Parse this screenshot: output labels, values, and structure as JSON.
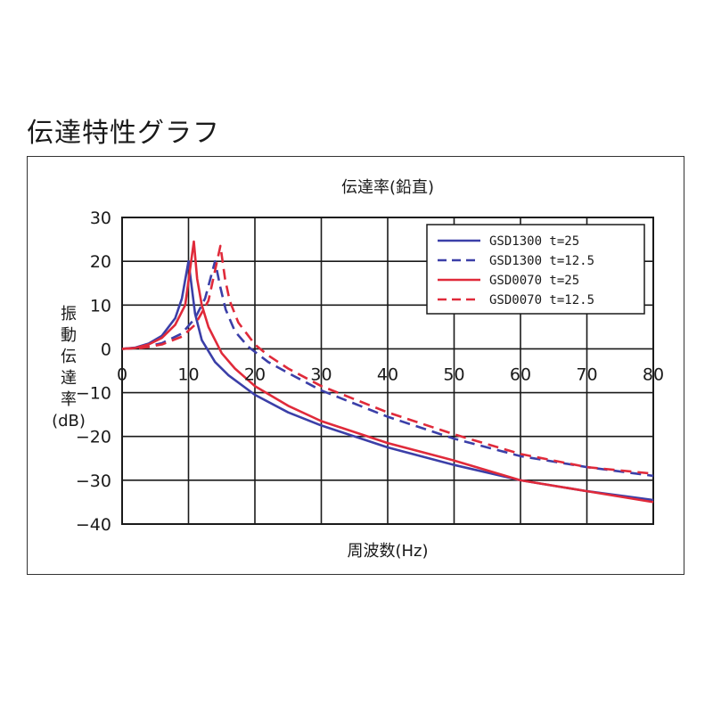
{
  "heading": "伝達特性グラフ",
  "chart_data": {
    "type": "line",
    "title": "伝達率(鉛直)",
    "xlabel": "周波数(Hz)",
    "ylabel": [
      "振",
      "動",
      "伝",
      "達",
      "率",
      "(dB)"
    ],
    "xlim": [
      0,
      80
    ],
    "ylim": [
      -40,
      30
    ],
    "x_ticks": [
      "0",
      "10",
      "20",
      "30",
      "40",
      "50",
      "60",
      "70",
      "80"
    ],
    "y_ticks": [
      "30",
      "20",
      "10",
      "0",
      "−10",
      "−20",
      "−30",
      "−40"
    ],
    "grid": true,
    "legend_position": "top-right",
    "series": [
      {
        "name": "GSD1300  t=25",
        "color": "#3b3fa8",
        "dash": "solid",
        "points": [
          [
            0,
            0
          ],
          [
            2,
            0.3
          ],
          [
            4,
            1.2
          ],
          [
            6,
            3.0
          ],
          [
            8,
            7.0
          ],
          [
            9,
            11.5
          ],
          [
            10,
            20
          ],
          [
            10.5,
            14
          ],
          [
            11,
            8
          ],
          [
            12,
            2
          ],
          [
            14,
            -3
          ],
          [
            16,
            -6
          ],
          [
            20,
            -10.5
          ],
          [
            25,
            -14.5
          ],
          [
            30,
            -17.5
          ],
          [
            40,
            -22.5
          ],
          [
            50,
            -26.5
          ],
          [
            60,
            -30
          ],
          [
            70,
            -32.5
          ],
          [
            80,
            -34.5
          ]
        ]
      },
      {
        "name": "GSD1300  t=12.5",
        "color": "#3b3fa8",
        "dash": "dashed",
        "points": [
          [
            0,
            0
          ],
          [
            3,
            0.3
          ],
          [
            6,
            1.3
          ],
          [
            9,
            3.5
          ],
          [
            11,
            7.0
          ],
          [
            12.5,
            11.5
          ],
          [
            14,
            20
          ],
          [
            14.8,
            14
          ],
          [
            15.6,
            9
          ],
          [
            17,
            4
          ],
          [
            19,
            0.5
          ],
          [
            22,
            -3
          ],
          [
            25,
            -5.5
          ],
          [
            30,
            -9.5
          ],
          [
            40,
            -15.5
          ],
          [
            50,
            -20.5
          ],
          [
            60,
            -24.5
          ],
          [
            70,
            -27
          ],
          [
            80,
            -29
          ]
        ]
      },
      {
        "name": "GSD0070  t=25",
        "color": "#e02a3a",
        "dash": "solid",
        "points": [
          [
            0,
            0
          ],
          [
            2,
            0.2
          ],
          [
            4,
            1.0
          ],
          [
            6,
            2.5
          ],
          [
            8,
            5.5
          ],
          [
            9.5,
            10
          ],
          [
            10.8,
            24.5
          ],
          [
            11.3,
            16
          ],
          [
            12,
            10
          ],
          [
            13,
            5
          ],
          [
            15,
            -1
          ],
          [
            17,
            -4.5
          ],
          [
            20,
            -8.5
          ],
          [
            25,
            -13
          ],
          [
            30,
            -16.5
          ],
          [
            40,
            -21.5
          ],
          [
            50,
            -25.5
          ],
          [
            60,
            -30
          ],
          [
            70,
            -32.5
          ],
          [
            80,
            -35
          ]
        ]
      },
      {
        "name": "GSD0070  t=12.5",
        "color": "#e02a3a",
        "dash": "dashed",
        "points": [
          [
            0,
            0
          ],
          [
            3,
            0.2
          ],
          [
            6,
            1.0
          ],
          [
            9,
            2.8
          ],
          [
            11,
            5.5
          ],
          [
            13,
            11
          ],
          [
            14.8,
            23.5
          ],
          [
            15.5,
            16
          ],
          [
            16.2,
            11
          ],
          [
            17.5,
            6
          ],
          [
            20,
            1
          ],
          [
            22,
            -1.5
          ],
          [
            25,
            -4.5
          ],
          [
            30,
            -8.5
          ],
          [
            40,
            -14.5
          ],
          [
            50,
            -19.5
          ],
          [
            60,
            -24
          ],
          [
            70,
            -27
          ],
          [
            80,
            -28.5
          ]
        ]
      }
    ]
  }
}
